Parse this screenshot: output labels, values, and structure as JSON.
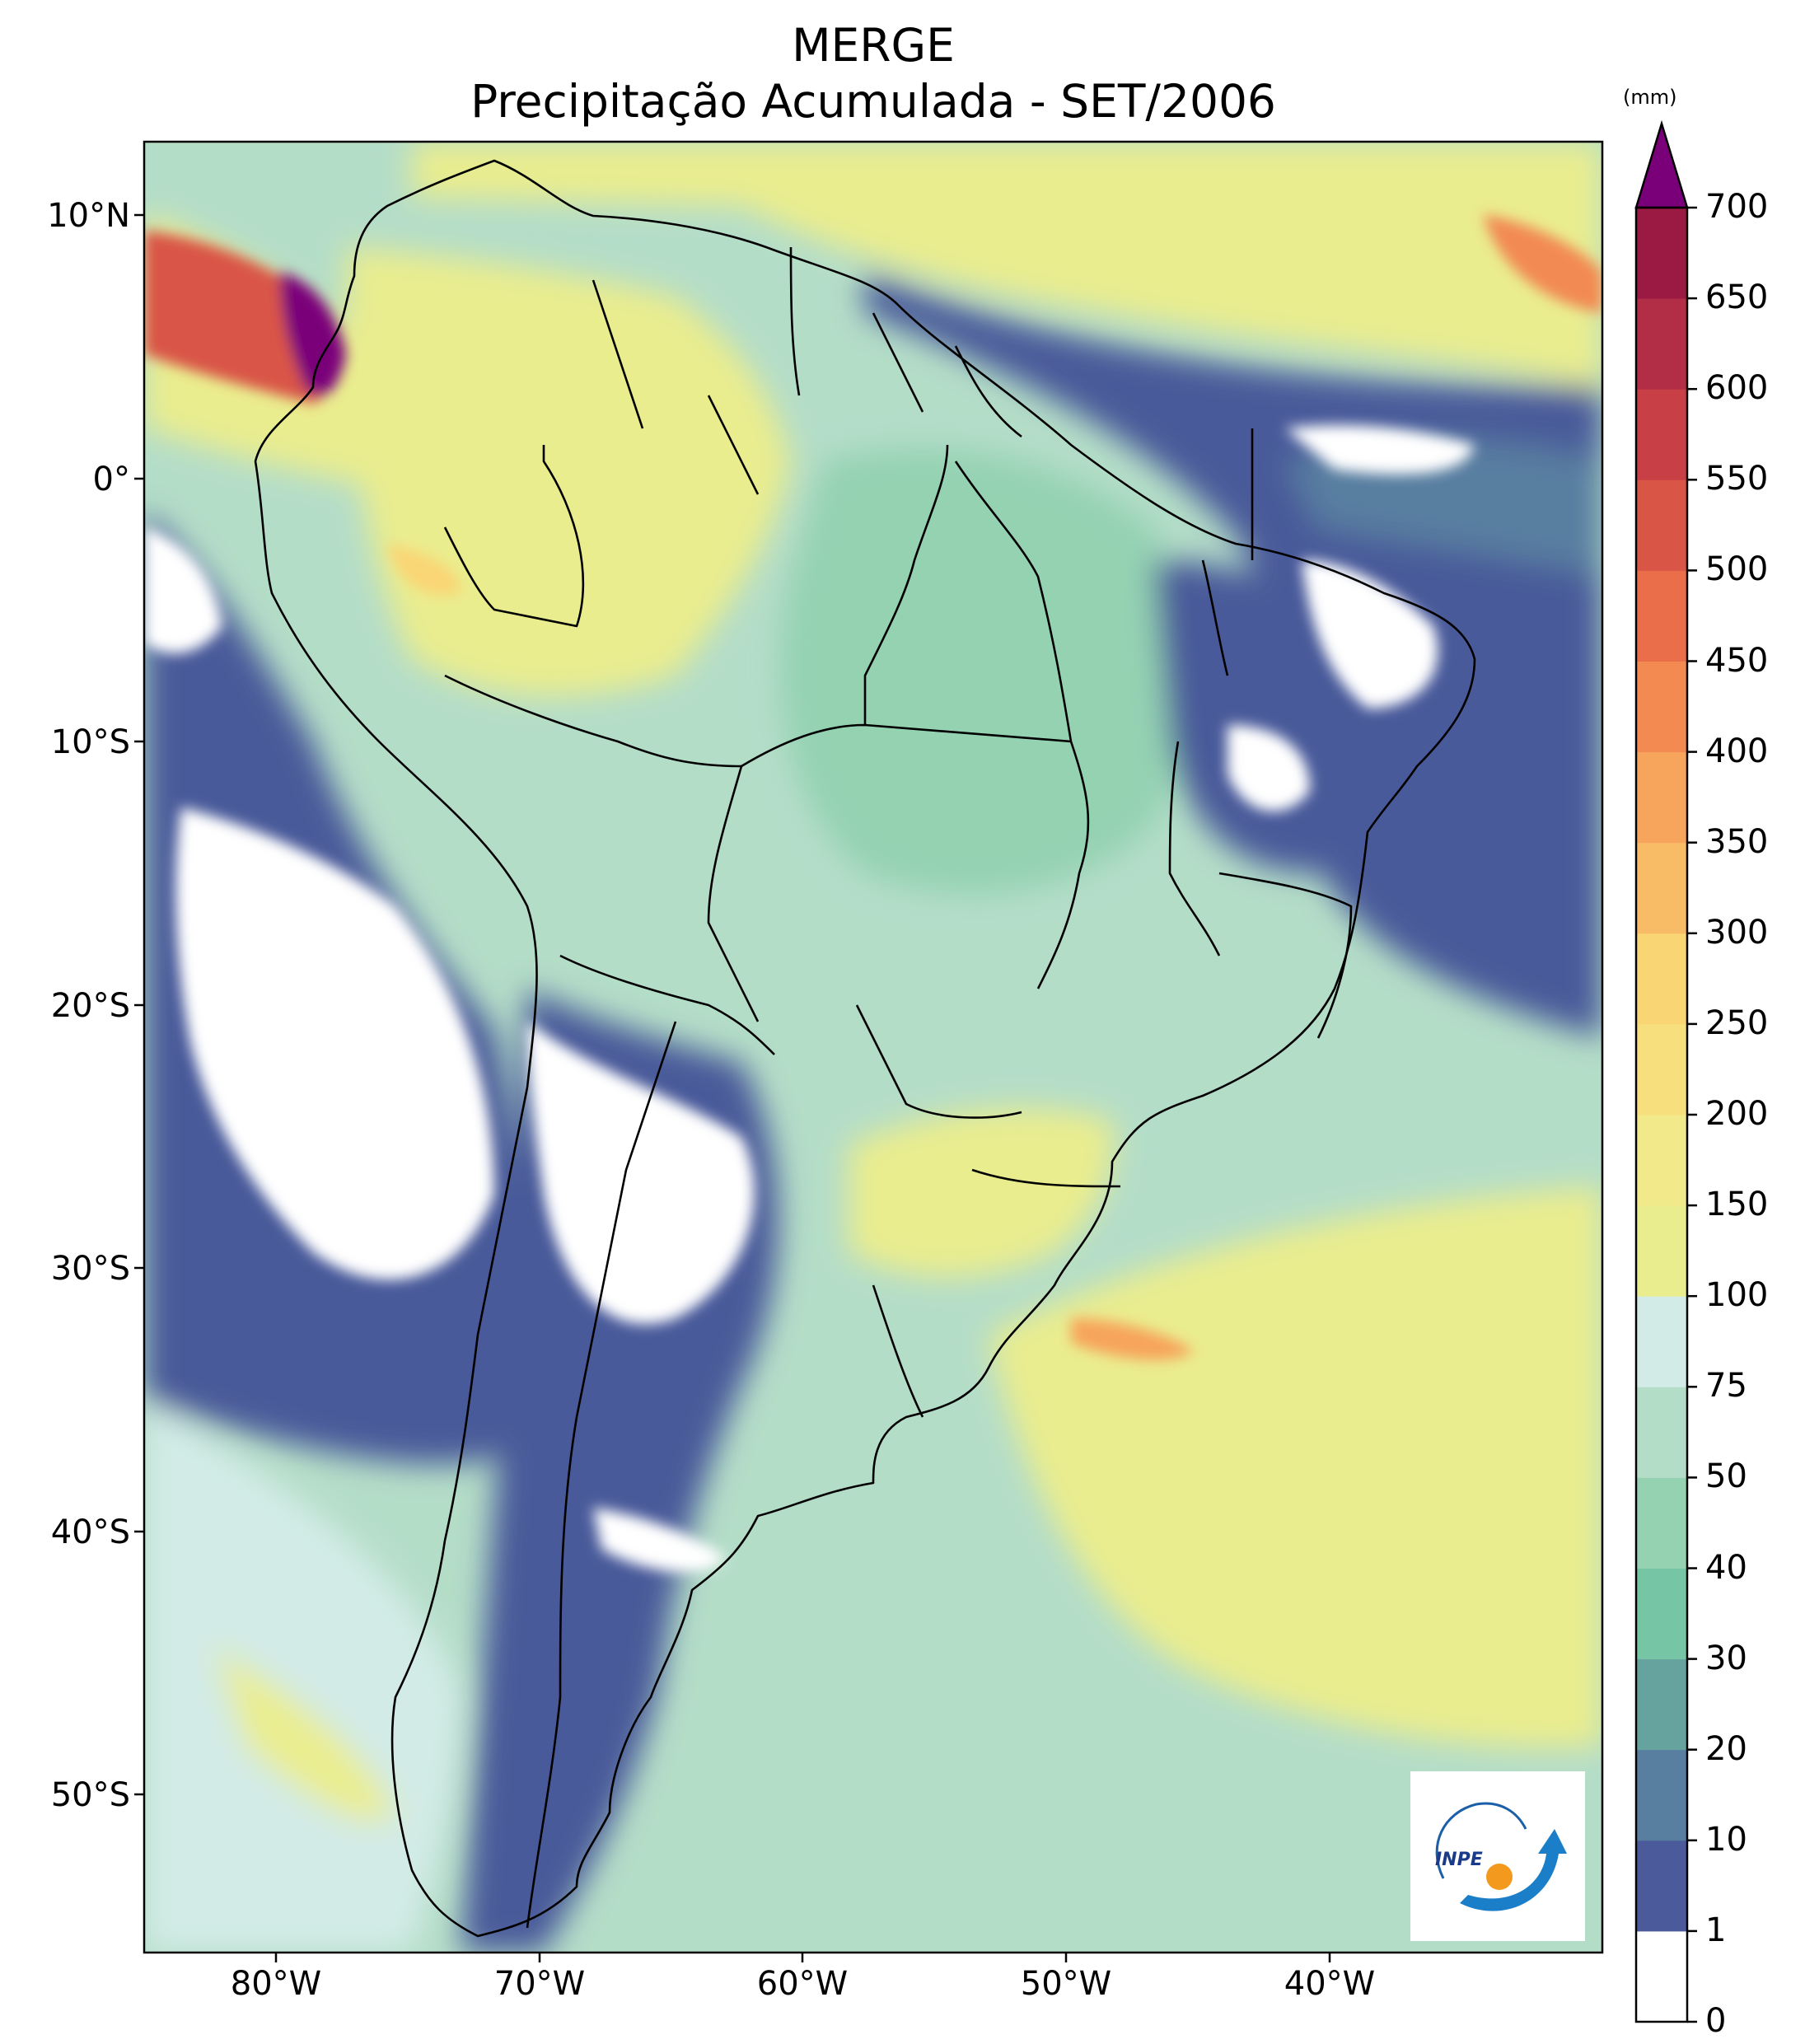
{
  "title": "MERGE",
  "subtitle": "Precipitação Acumulada - SET/2006",
  "map": {
    "region": "South America",
    "lon_range": [
      -85,
      -29
    ],
    "lat_range": [
      -56,
      13
    ],
    "lat_ticks": [
      {
        "value": 10,
        "label": "10°N"
      },
      {
        "value": 0,
        "label": "0°"
      },
      {
        "value": -10,
        "label": "10°S"
      },
      {
        "value": -20,
        "label": "20°S"
      },
      {
        "value": -30,
        "label": "30°S"
      },
      {
        "value": -40,
        "label": "40°S"
      },
      {
        "value": -50,
        "label": "50°S"
      }
    ],
    "lon_ticks": [
      {
        "value": -80,
        "label": "80°W"
      },
      {
        "value": -70,
        "label": "70°W"
      },
      {
        "value": -60,
        "label": "60°W"
      },
      {
        "value": -50,
        "label": "50°W"
      },
      {
        "value": -40,
        "label": "40°W"
      }
    ]
  },
  "colorbar": {
    "unit": "(mm)",
    "levels": [
      {
        "label": "0",
        "color": "#ffffff"
      },
      {
        "label": "1",
        "color": "#4a5a9a"
      },
      {
        "label": "10",
        "color": "#587ea0"
      },
      {
        "label": "20",
        "color": "#66a29e"
      },
      {
        "label": "30",
        "color": "#76c6a6"
      },
      {
        "label": "40",
        "color": "#94d2b2"
      },
      {
        "label": "50",
        "color": "#b4ddc8"
      },
      {
        "label": "75",
        "color": "#d2ebe6"
      },
      {
        "label": "100",
        "color": "#eaed8e"
      },
      {
        "label": "150",
        "color": "#f2e98a"
      },
      {
        "label": "200",
        "color": "#f7df7e"
      },
      {
        "label": "250",
        "color": "#fad574"
      },
      {
        "label": "300",
        "color": "#f9bc66"
      },
      {
        "label": "350",
        "color": "#f7a45c"
      },
      {
        "label": "400",
        "color": "#f28a52"
      },
      {
        "label": "450",
        "color": "#ea6e4a"
      },
      {
        "label": "500",
        "color": "#d95546"
      },
      {
        "label": "550",
        "color": "#c84046"
      },
      {
        "label": "600",
        "color": "#b22e46"
      },
      {
        "label": "650",
        "color": "#9a1a44"
      },
      {
        "label": "700",
        "color": "#7a007a"
      }
    ]
  },
  "logo": {
    "text": "INPE"
  }
}
